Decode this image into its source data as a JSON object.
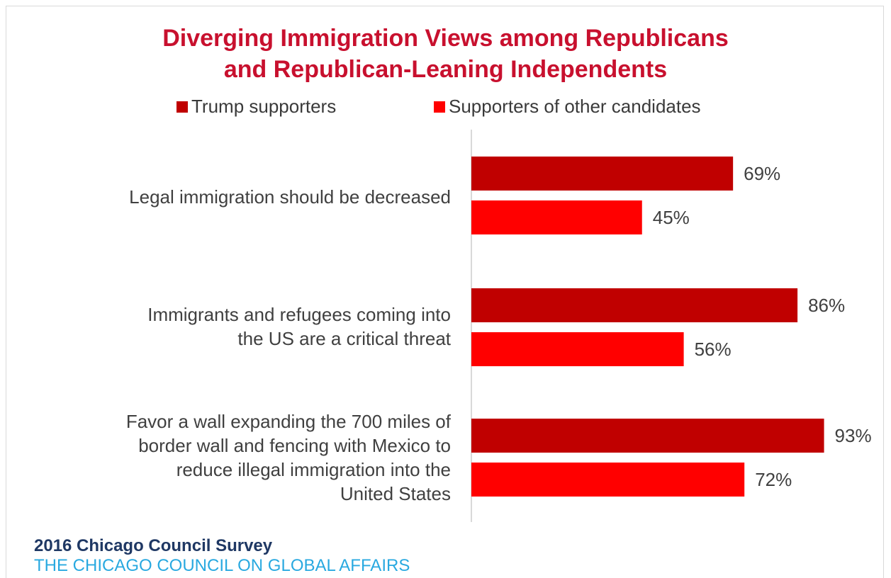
{
  "chart_data": {
    "type": "bar",
    "orientation": "horizontal",
    "title_line1": "Diverging Immigration Views among Republicans",
    "title_line2": "and Republican-Leaning Independents",
    "categories": [
      [
        "Legal immigration should be decreased"
      ],
      [
        "Immigrants and refugees coming into",
        "the US are a critical threat"
      ],
      [
        "Favor a wall expanding the 700 miles of",
        "border wall and fencing with Mexico to",
        "reduce illegal immigration into the",
        "United States"
      ]
    ],
    "series": [
      {
        "name": "Trump supporters",
        "color": "#c00000",
        "values": [
          69,
          86,
          93
        ]
      },
      {
        "name": "Supporters of other candidates",
        "color": "#ff0000",
        "values": [
          45,
          56,
          72
        ]
      }
    ],
    "value_suffix": "%",
    "xlim": [
      0,
      100
    ],
    "grid": false,
    "legend_position": "top"
  },
  "footer": {
    "survey": "2016 Chicago Council Survey",
    "organization": "THE CHICAGO COUNCIL ON GLOBAL AFFAIRS"
  }
}
